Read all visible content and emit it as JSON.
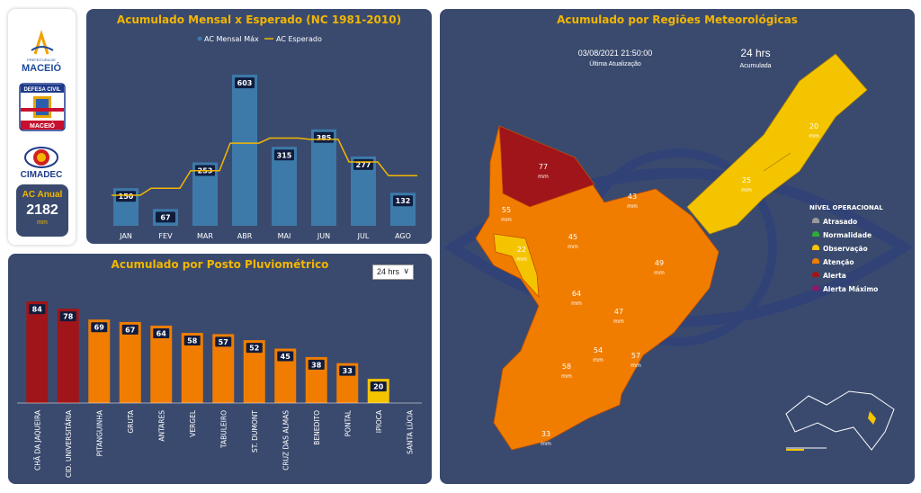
{
  "sidebar": {
    "logo1_text": "MACEIÓ",
    "logo1_subtext": "PREFEITURA DE",
    "logo2_top": "DEFESA CIVIL",
    "logo2_bottom": "MACEIÓ",
    "logo3_text": "CIMADEC",
    "ac_anual_label": "AC Anual",
    "ac_anual_value": "2182",
    "ac_anual_unit": "mm"
  },
  "monthly": {
    "title": "Acumulado Mensal x Esperado (NC 1981-2010)",
    "chart_data": {
      "type": "bar",
      "categories": [
        "JAN",
        "FEV",
        "MAR",
        "ABR",
        "MAI",
        "JUN",
        "JUL",
        "AGO"
      ],
      "series": [
        {
          "name": "AC Mensal Máx",
          "values": [
            150,
            67,
            253,
            603,
            315,
            385,
            277,
            132
          ],
          "color": "#3d7aaa"
        },
        {
          "name": "AC Esperado",
          "values": [
            122,
            150,
            220,
            330,
            350,
            345,
            255,
            200
          ],
          "color": "#f2b600"
        }
      ],
      "ylim": [
        0,
        650
      ]
    }
  },
  "posto": {
    "title": "Acumulado por Posto Pluviométrico",
    "dropdown_value": "24 hrs",
    "chart_data": {
      "type": "bar",
      "categories": [
        "CHÃ DA JAQUEIRA",
        "CID. UNIVERSITÁRIA",
        "PITANGUINHA",
        "GRUTA",
        "ANTARES",
        "VERGEL",
        "TABULEIRO",
        "ST. DUMONT",
        "CRUZ DAS ALMAS",
        "BENEDITO",
        "PONTAL",
        "IPIOCA",
        "SANTA LÚCIA"
      ],
      "values": [
        84,
        78,
        69,
        67,
        64,
        58,
        57,
        52,
        45,
        38,
        33,
        20,
        null
      ],
      "colors": [
        "#a01519",
        "#a01519",
        "#f07d00",
        "#f07d00",
        "#f07d00",
        "#f07d00",
        "#f07d00",
        "#f07d00",
        "#f07d00",
        "#f07d00",
        "#f07d00",
        "#f5c400",
        "#f07d00"
      ],
      "ylim": [
        0,
        90
      ]
    }
  },
  "regions": {
    "title": "Acumulado por Regiões Meteorológicas",
    "datetime": "03/08/2021 21:50:00",
    "datetime_label": "Última Atualização",
    "period": "24 hrs",
    "period_label": "Acumulada",
    "values": [
      "77",
      "55",
      "43",
      "22",
      "45",
      "49",
      "64",
      "47",
      "54",
      "58",
      "57",
      "33",
      "25",
      "20"
    ],
    "unit": "mm",
    "legend_title": "NÍVEL OPERACIONAL",
    "legend": [
      {
        "label": "Atrasado",
        "color": "#9a9a9a"
      },
      {
        "label": "Normalidade",
        "color": "#2eaa3a"
      },
      {
        "label": "Observação",
        "color": "#f5c400"
      },
      {
        "label": "Atenção",
        "color": "#f07d00"
      },
      {
        "label": "Alerta",
        "color": "#a01519"
      },
      {
        "label": "Alerta Máximo",
        "color": "#8a1a6a"
      }
    ],
    "colors": {
      "alerta": "#a01519",
      "atencao": "#f07d00",
      "observacao": "#f5c400"
    }
  }
}
